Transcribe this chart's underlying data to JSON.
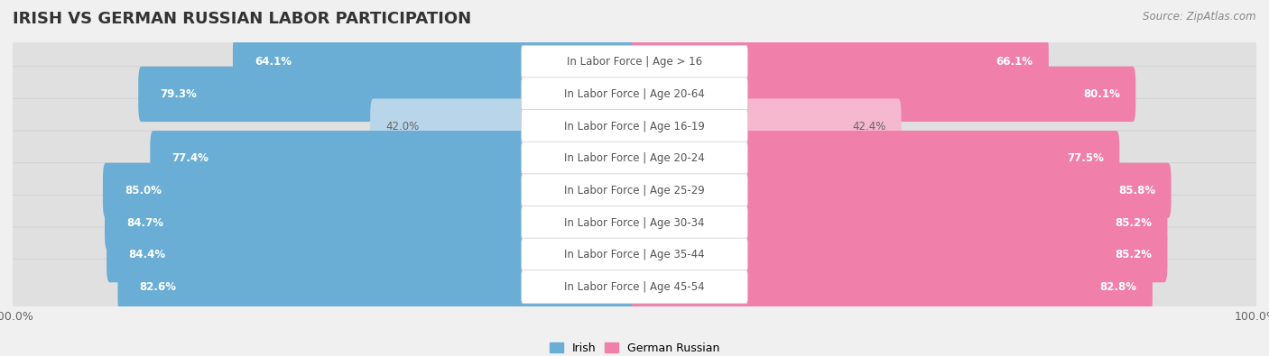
{
  "title": "IRISH VS GERMAN RUSSIAN LABOR PARTICIPATION",
  "source": "Source: ZipAtlas.com",
  "categories": [
    "In Labor Force | Age > 16",
    "In Labor Force | Age 20-64",
    "In Labor Force | Age 16-19",
    "In Labor Force | Age 20-24",
    "In Labor Force | Age 25-29",
    "In Labor Force | Age 30-34",
    "In Labor Force | Age 35-44",
    "In Labor Force | Age 45-54"
  ],
  "irish_values": [
    64.1,
    79.3,
    42.0,
    77.4,
    85.0,
    84.7,
    84.4,
    82.6
  ],
  "german_russian_values": [
    66.1,
    80.1,
    42.4,
    77.5,
    85.8,
    85.2,
    85.2,
    82.8
  ],
  "irish_color": "#6aaed6",
  "irish_color_light": "#b8d5ea",
  "german_russian_color": "#f07faa",
  "german_russian_color_light": "#f5b8ce",
  "pill_bg": "#e8e8e8",
  "row_bg_odd": "#f2f2f2",
  "row_bg_even": "#e8e8e8",
  "label_color_dark": "#555555",
  "label_value_color_low": "#888888",
  "max_value": 100.0,
  "label_fontsize": 8.5,
  "title_fontsize": 13,
  "legend_fontsize": 9,
  "bar_height": 0.72,
  "low_threshold": 60
}
